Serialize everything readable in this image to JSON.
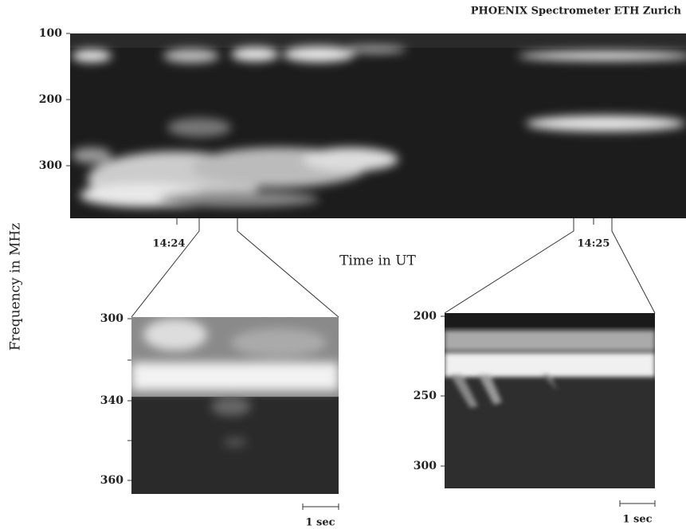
{
  "credit": "PHOENIX Spectrometer ETH Zurich",
  "y_label": "Frequency in MHz",
  "x_label": "Time in UT",
  "main": {
    "yticks": [
      "100",
      "200",
      "300"
    ],
    "time_labels": [
      "14:24",
      "14:25"
    ]
  },
  "insets": [
    {
      "yticks": [
        "300",
        "340",
        "360"
      ],
      "scale_label": "1 sec"
    },
    {
      "yticks": [
        "200",
        "250",
        "300"
      ],
      "scale_label": "1 sec"
    }
  ]
}
